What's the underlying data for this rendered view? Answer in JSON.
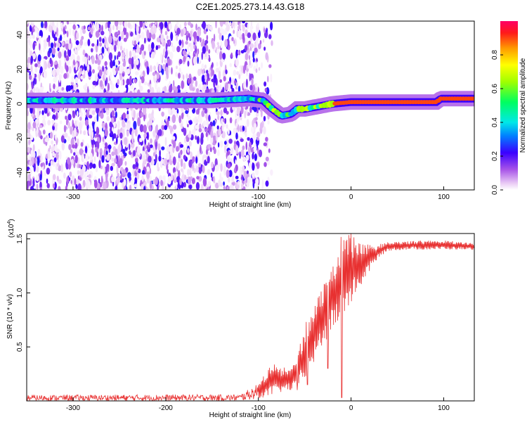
{
  "title": "C2E1.2025.273.14.43.G18",
  "colors": {
    "snr_line": "#e83030",
    "axis": "#000000"
  },
  "chart_data": [
    {
      "type": "heatmap",
      "name": "spectrogram",
      "xlabel": "Height of straight line (km)",
      "ylabel": "Frequency (Hz)",
      "xlim": [
        -350,
        133
      ],
      "ylim": [
        -50,
        48
      ],
      "xticks": [
        -300,
        -200,
        -100,
        0,
        100
      ],
      "xtick_labels": [
        "-300",
        "-200",
        "-100",
        "0",
        "100"
      ],
      "yticks": [
        -40,
        -20,
        0,
        20,
        40
      ],
      "ytick_labels": [
        "-40",
        "-20",
        "0",
        "20",
        "40"
      ],
      "noise_region_x": [
        -350,
        -100
      ],
      "ridge_path": [
        {
          "x": -350,
          "f": 2
        },
        {
          "x": -250,
          "f": 2
        },
        {
          "x": -150,
          "f": 2
        },
        {
          "x": -110,
          "f": 3
        },
        {
          "x": -95,
          "f": 2
        },
        {
          "x": -85,
          "f": -3
        },
        {
          "x": -75,
          "f": -7
        },
        {
          "x": -65,
          "f": -6
        },
        {
          "x": -58,
          "f": -3
        },
        {
          "x": -50,
          "f": -3
        },
        {
          "x": -40,
          "f": -2
        },
        {
          "x": -30,
          "f": -1
        },
        {
          "x": -20,
          "f": 0
        },
        {
          "x": 0,
          "f": 1
        },
        {
          "x": 50,
          "f": 1
        },
        {
          "x": 92,
          "f": 1
        },
        {
          "x": 97,
          "f": 3
        },
        {
          "x": 133,
          "f": 3
        }
      ],
      "colorbar": {
        "label": "Normalized spectral amplitude",
        "range": [
          0,
          1
        ],
        "ticks": [
          0.0,
          0.2,
          0.4,
          0.6,
          0.8
        ],
        "tick_labels": [
          "0.0",
          "0.2",
          "0.4",
          "0.6",
          "0.8"
        ]
      }
    },
    {
      "type": "line",
      "name": "snr",
      "xlabel": "Height of straight line (km)",
      "ylabel": "SNR (10 * v/v)",
      "scale_label": "(x10",
      "scale_exponent": "4",
      "scale_suffix": ")",
      "xlim": [
        -350,
        133
      ],
      "ylim": [
        0,
        15500
      ],
      "xticks": [
        -300,
        -200,
        -100,
        0,
        100
      ],
      "xtick_labels": [
        "-300",
        "-200",
        "-100",
        "0",
        "100"
      ],
      "yticks": [
        5000,
        10000,
        15000
      ],
      "ytick_labels": [
        "0.5",
        "1.0",
        "1.5"
      ],
      "envelope": [
        {
          "x": -350,
          "lo": 0,
          "hi": 550
        },
        {
          "x": -120,
          "lo": 0,
          "hi": 600
        },
        {
          "x": -100,
          "lo": 200,
          "hi": 1600
        },
        {
          "x": -85,
          "lo": 500,
          "hi": 3500
        },
        {
          "x": -75,
          "lo": 800,
          "hi": 3000
        },
        {
          "x": -60,
          "lo": 1000,
          "hi": 3500
        },
        {
          "x": -50,
          "lo": 2000,
          "hi": 7000
        },
        {
          "x": -40,
          "lo": 3500,
          "hi": 9000
        },
        {
          "x": -30,
          "lo": 5000,
          "hi": 11000
        },
        {
          "x": -20,
          "lo": 6500,
          "hi": 12500
        },
        {
          "x": -10,
          "lo": 7500,
          "hi": 15500
        },
        {
          "x": 0,
          "lo": 9000,
          "hi": 15500
        },
        {
          "x": 10,
          "lo": 10500,
          "hi": 14500
        },
        {
          "x": 20,
          "lo": 12000,
          "hi": 14500
        },
        {
          "x": 30,
          "lo": 13300,
          "hi": 14500
        },
        {
          "x": 40,
          "lo": 13900,
          "hi": 14700
        },
        {
          "x": 60,
          "lo": 14000,
          "hi": 14800
        },
        {
          "x": 100,
          "lo": 14000,
          "hi": 14900
        },
        {
          "x": 133,
          "lo": 14000,
          "hi": 14600
        }
      ],
      "dropouts": [
        {
          "x": -58,
          "y": 1000
        },
        {
          "x": -47,
          "y": 1500
        },
        {
          "x": -10,
          "y": 300
        },
        {
          "x": -25,
          "y": 3000
        }
      ]
    }
  ]
}
